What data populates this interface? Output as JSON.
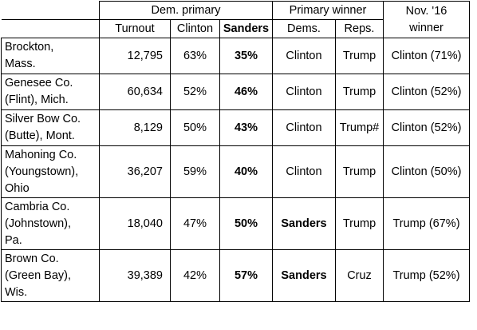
{
  "headers": {
    "group_dem_primary": "Dem. primary",
    "group_primary_winner": "Primary winner",
    "group_nov16_winner_line1": "Nov. '16",
    "group_nov16_winner_line2": "winner",
    "col_turnout": "Turnout",
    "col_clinton": "Clinton",
    "col_sanders": "Sanders",
    "col_dems": "Dems.",
    "col_reps": "Reps."
  },
  "rows": [
    {
      "place_line1": "Brockton,",
      "place_line2": "Mass.",
      "place_line3": "",
      "turnout": "12,795",
      "clinton": "63%",
      "sanders": "35%",
      "dems_winner": "Clinton",
      "reps_winner": "Trump",
      "nov_winner": "Clinton (71%)"
    },
    {
      "place_line1": "Genesee Co.",
      "place_line2": "(Flint), Mich.",
      "place_line3": "",
      "turnout": "60,634",
      "clinton": "52%",
      "sanders": "46%",
      "dems_winner": "Clinton",
      "reps_winner": "Trump",
      "nov_winner": "Clinton (52%)"
    },
    {
      "place_line1": "Silver Bow Co.",
      "place_line2": "(Butte), Mont.",
      "place_line3": "",
      "turnout": "8,129",
      "clinton": "50%",
      "sanders": "43%",
      "dems_winner": "Clinton",
      "reps_winner": "Trump#",
      "nov_winner": "Clinton (52%)"
    },
    {
      "place_line1": "Mahoning Co.",
      "place_line2": "(Youngstown),",
      "place_line3": "Ohio",
      "turnout": "36,207",
      "clinton": "59%",
      "sanders": "40%",
      "dems_winner": "Clinton",
      "reps_winner": "Trump",
      "nov_winner": "Clinton (50%)"
    },
    {
      "place_line1": "Cambria Co.",
      "place_line2": "(Johnstown),",
      "place_line3": "Pa.",
      "turnout": "18,040",
      "clinton": "47%",
      "sanders": "50%",
      "dems_winner": "Sanders",
      "reps_winner": "Trump",
      "nov_winner": "Trump (67%)"
    },
    {
      "place_line1": "Brown Co.",
      "place_line2": "(Green Bay),",
      "place_line3": "Wis.",
      "turnout": "39,389",
      "clinton": "42%",
      "sanders": "57%",
      "dems_winner": "Sanders",
      "reps_winner": "Cruz",
      "nov_winner": "Trump (52%)"
    }
  ]
}
